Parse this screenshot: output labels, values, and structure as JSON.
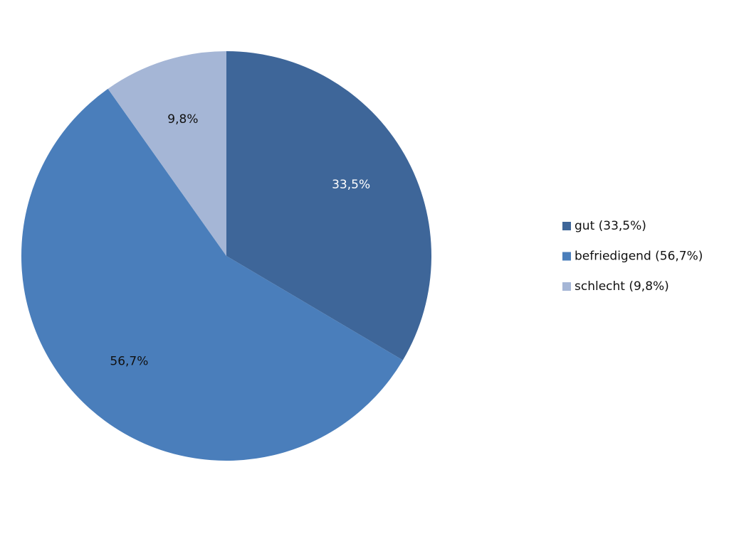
{
  "chart_data": {
    "type": "pie",
    "categories": [
      "gut (33,5%)",
      "befriedigend (56,7%)",
      "schlecht (9,8%)"
    ],
    "values": [
      33.5,
      56.7,
      9.8
    ],
    "value_labels": [
      "33,5%",
      "56,7%",
      "9,8%"
    ],
    "colors": [
      "#3e6699",
      "#4a7ebb",
      "#a5b6d6"
    ],
    "legend": "right"
  }
}
